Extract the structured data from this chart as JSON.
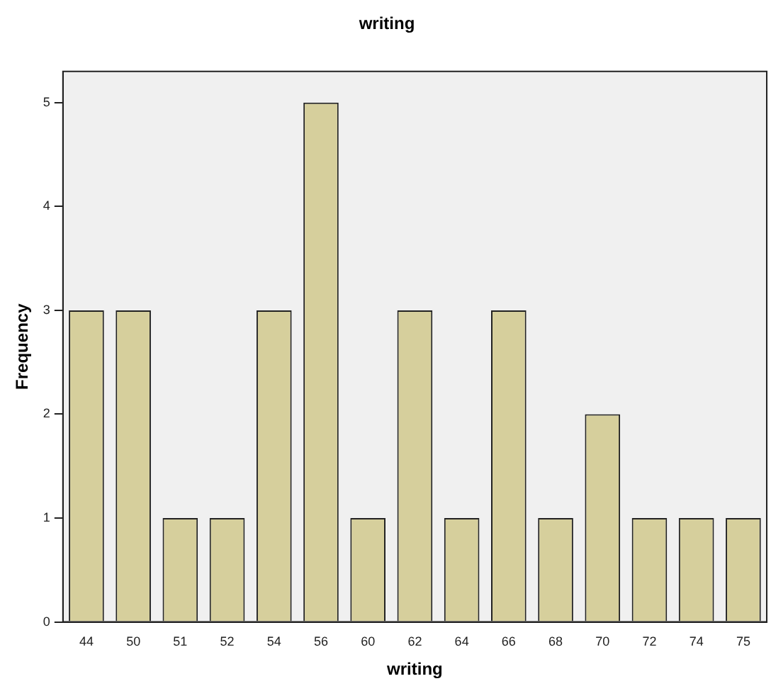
{
  "chart_data": {
    "type": "bar",
    "title": "writing",
    "xlabel": "writing",
    "ylabel": "Frequency",
    "categories": [
      "44",
      "50",
      "51",
      "52",
      "54",
      "56",
      "60",
      "62",
      "64",
      "66",
      "68",
      "70",
      "72",
      "74",
      "75"
    ],
    "values": [
      3,
      3,
      1,
      1,
      3,
      5,
      1,
      3,
      1,
      3,
      1,
      2,
      1,
      1,
      1
    ],
    "color": "#d6cf9c",
    "ylim": [
      0,
      5.3
    ],
    "yticks": [
      0,
      1,
      2,
      3,
      4,
      5
    ],
    "grid": false,
    "legend": false
  }
}
